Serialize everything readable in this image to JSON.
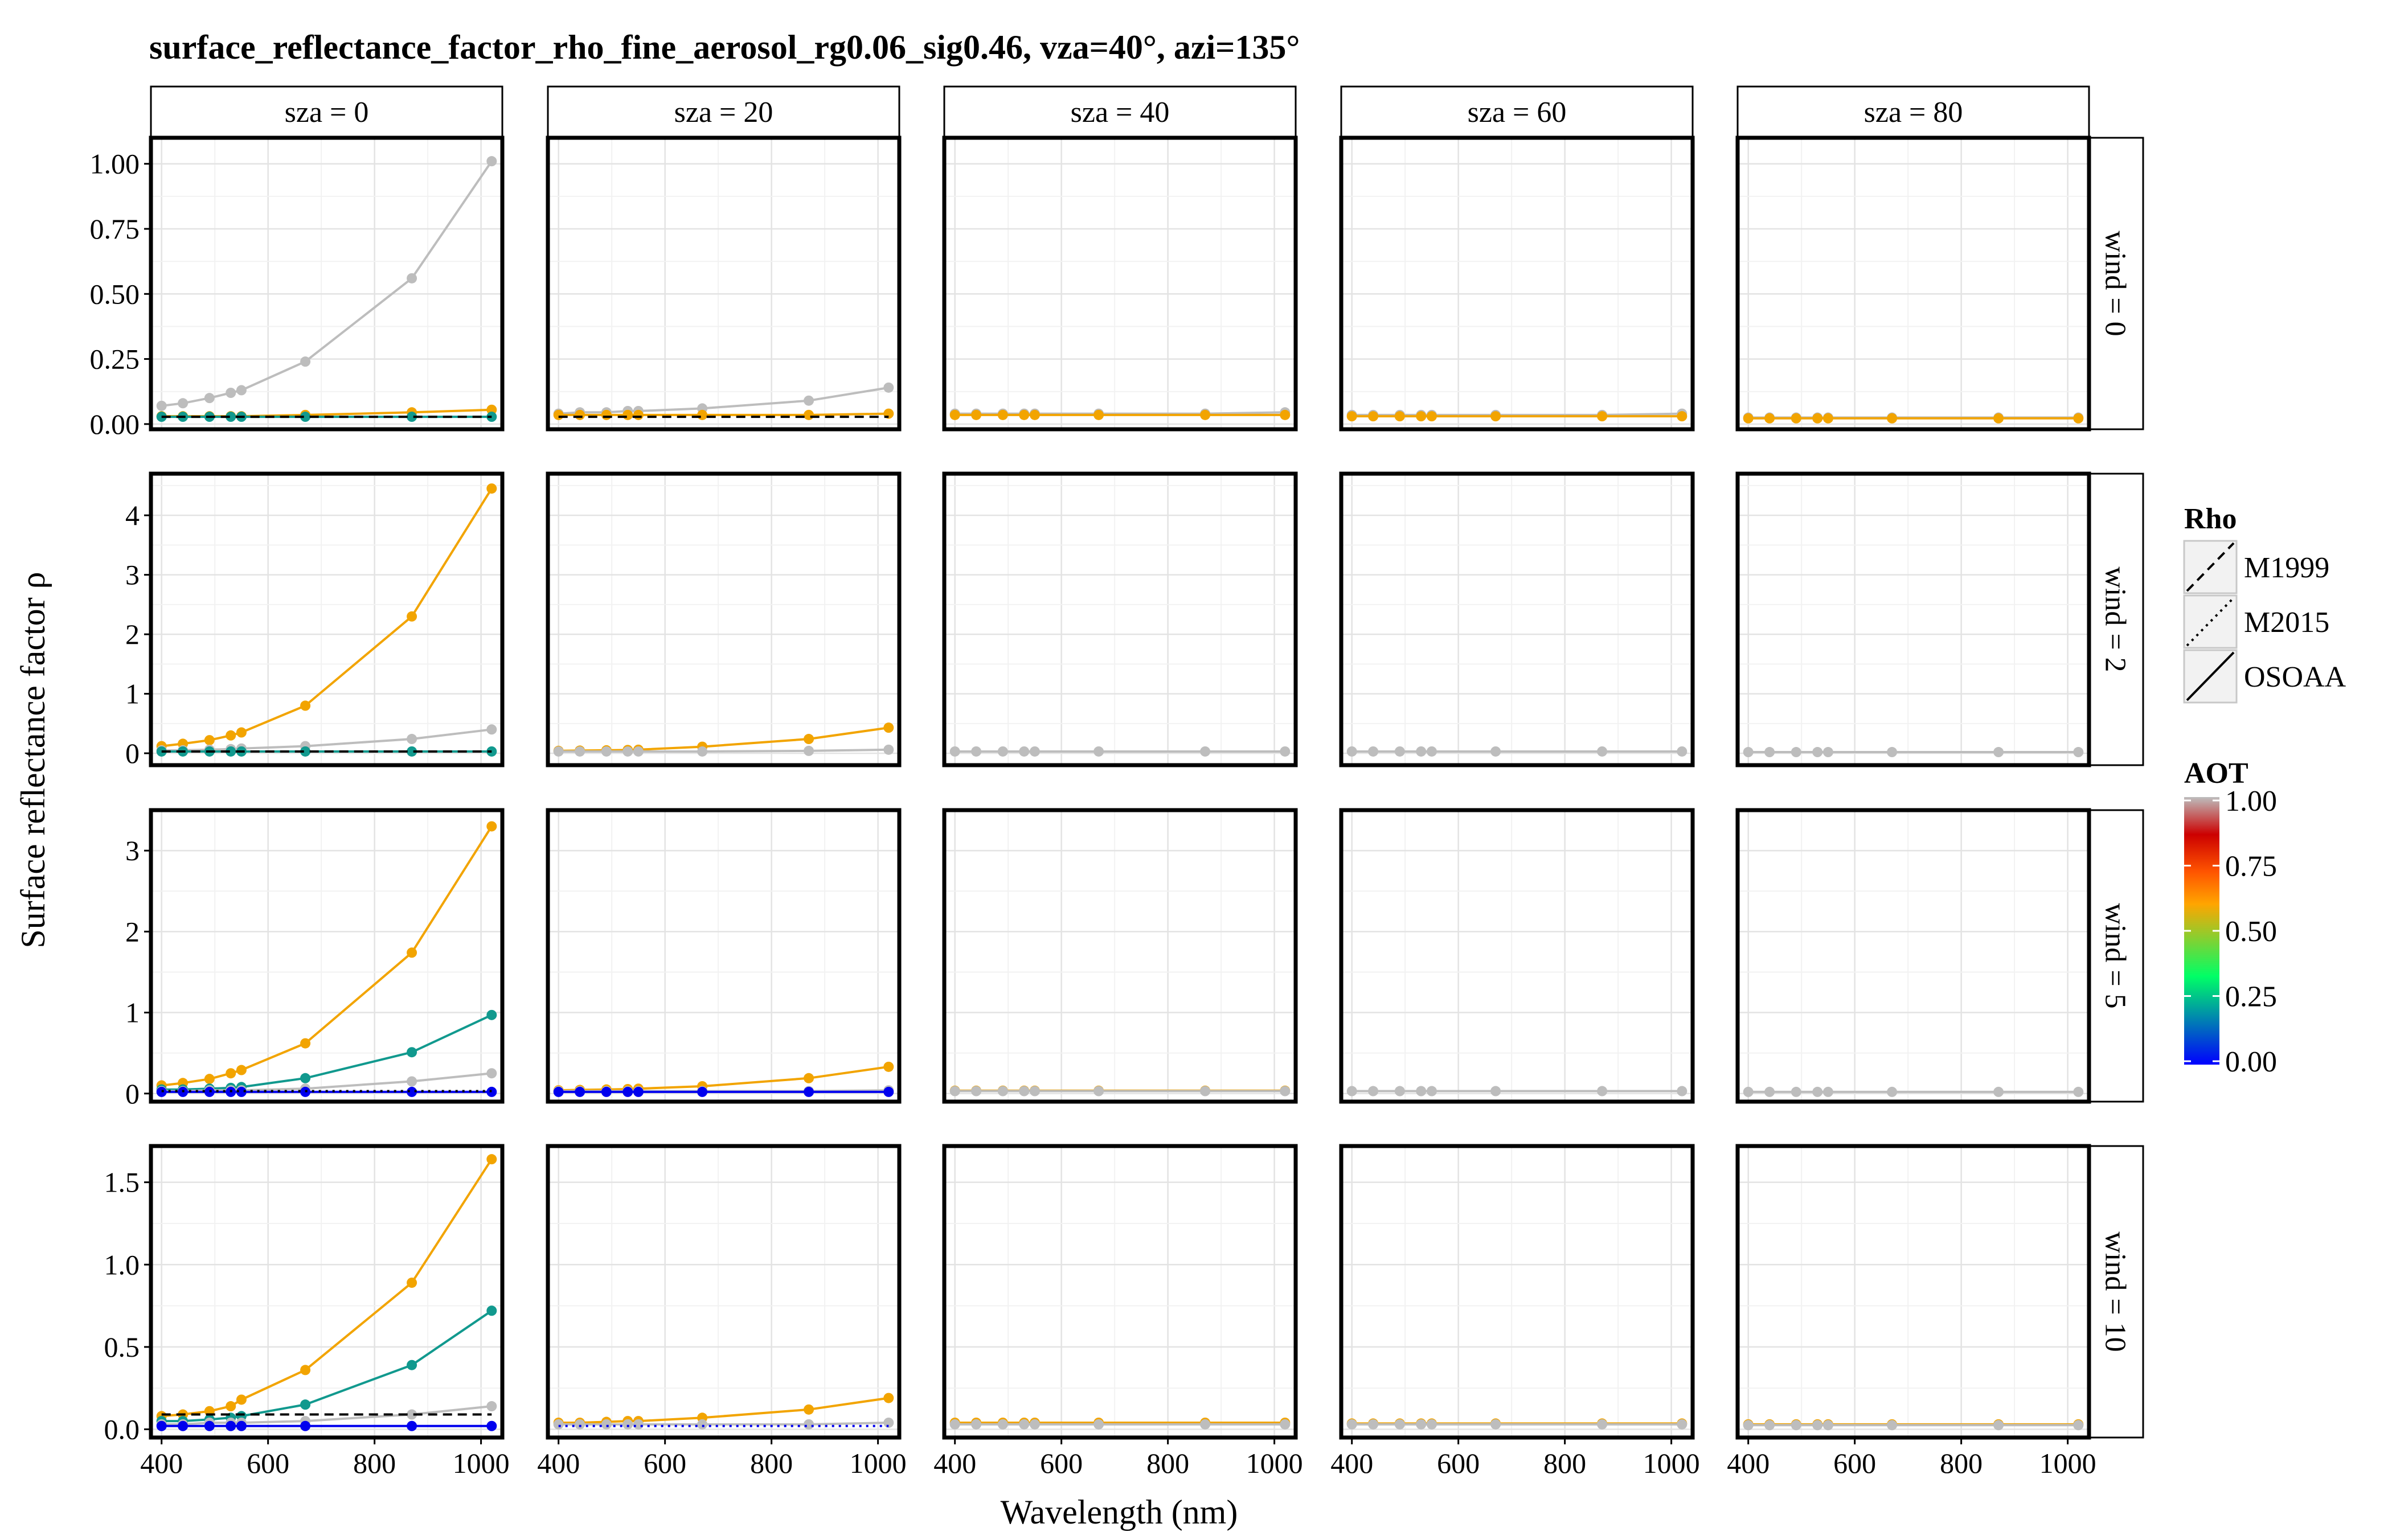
{
  "chart_data": {
    "type": "line",
    "title": "surface_reflectance_factor_rho_fine_aerosol_rg0.06_sig0.46, vza=40°, azi=135°",
    "xlabel": "Wavelength (nm)",
    "ylabel": "Surface reflectance factor ρ",
    "grid": true,
    "xlim": [
      380,
      1040
    ],
    "x_ticks": [
      400,
      600,
      800,
      1000
    ],
    "x": [
      400,
      440,
      490,
      530,
      550,
      670,
      870,
      1020
    ],
    "columns": [
      "sza = 0",
      "sza = 20",
      "sza = 40",
      "sza = 60",
      "sza = 80"
    ],
    "rows": [
      {
        "label": "wind = 0",
        "ylim": [
          -0.02,
          1.1
        ],
        "y_ticks": [
          0.0,
          0.25,
          0.5,
          0.75,
          1.0
        ],
        "y_tick_labels": [
          "0.00",
          "0.25",
          "0.50",
          "0.75",
          "1.00"
        ]
      },
      {
        "label": "wind = 2",
        "ylim": [
          -0.2,
          4.7
        ],
        "y_ticks": [
          0,
          1,
          2,
          3,
          4
        ],
        "y_tick_labels": [
          "0",
          "1",
          "2",
          "3",
          "4"
        ]
      },
      {
        "label": "wind = 5",
        "ylim": [
          -0.1,
          3.5
        ],
        "y_ticks": [
          0,
          1,
          2,
          3
        ],
        "y_tick_labels": [
          "0",
          "1",
          "2",
          "3"
        ]
      },
      {
        "label": "wind = 10",
        "ylim": [
          -0.05,
          1.72
        ],
        "y_ticks": [
          0.0,
          0.5,
          1.0,
          1.5
        ],
        "y_tick_labels": [
          "0.0",
          "0.5",
          "1.0",
          "1.5"
        ]
      }
    ],
    "legend_rho": {
      "title": "Rho",
      "position": "right",
      "entries": [
        {
          "label": "M1999",
          "linetype": "dashed"
        },
        {
          "label": "M2015",
          "linetype": "dotted"
        },
        {
          "label": "OSOAA",
          "linetype": "solid"
        }
      ]
    },
    "legend_aot": {
      "title": "AOT",
      "position": "right",
      "ticks": [
        0.0,
        0.25,
        0.5,
        0.75,
        1.0
      ],
      "tick_labels": [
        "0.00",
        "0.25",
        "0.50",
        "0.75",
        "1.00"
      ],
      "gradient": [
        "#0000ff",
        "#00ff66",
        "#ffa500",
        "#ff5500",
        "#cc0000",
        "#bdbdbd"
      ]
    },
    "panels": [
      {
        "row": 0,
        "col": 0,
        "series": [
          {
            "aot": 1.0,
            "color": "#bdbdbd",
            "linetype": "solid",
            "values": [
              0.07,
              0.08,
              0.1,
              0.12,
              0.13,
              0.24,
              0.56,
              1.01
            ]
          },
          {
            "aot": 0.5,
            "color": "#f2a400",
            "linetype": "solid",
            "values": [
              0.03,
              0.03,
              0.03,
              0.03,
              0.03,
              0.035,
              0.045,
              0.055
            ]
          },
          {
            "aot": 0.2,
            "color": "#11998e",
            "linetype": "solid",
            "values": [
              0.028,
              0.028,
              0.028,
              0.028,
              0.028,
              0.028,
              0.028,
              0.028
            ]
          },
          {
            "aot": 0.0,
            "color": "#000000",
            "linetype": "dashed",
            "values": [
              0.028,
              0.028,
              0.028,
              0.028,
              0.028,
              0.028,
              0.028,
              0.028
            ]
          }
        ]
      },
      {
        "row": 0,
        "col": 1,
        "series": [
          {
            "aot": 1.0,
            "color": "#bdbdbd",
            "linetype": "solid",
            "values": [
              0.04,
              0.045,
              0.045,
              0.05,
              0.05,
              0.06,
              0.09,
              0.14
            ]
          },
          {
            "aot": 0.5,
            "color": "#f2a400",
            "linetype": "solid",
            "values": [
              0.035,
              0.035,
              0.035,
              0.035,
              0.035,
              0.035,
              0.035,
              0.04
            ]
          },
          {
            "aot": 0.0,
            "color": "#000000",
            "linetype": "dashed",
            "values": [
              0.028,
              0.028,
              0.028,
              0.028,
              0.028,
              0.028,
              0.028,
              0.028
            ]
          }
        ]
      },
      {
        "row": 0,
        "col": 2,
        "series": [
          {
            "aot": 1.0,
            "color": "#bdbdbd",
            "linetype": "solid",
            "values": [
              0.04,
              0.04,
              0.04,
              0.04,
              0.04,
              0.04,
              0.04,
              0.045
            ]
          },
          {
            "aot": 0.5,
            "color": "#f2a400",
            "linetype": "solid",
            "values": [
              0.035,
              0.035,
              0.035,
              0.035,
              0.035,
              0.035,
              0.035,
              0.035
            ]
          }
        ]
      },
      {
        "row": 0,
        "col": 3,
        "series": [
          {
            "aot": 1.0,
            "color": "#bdbdbd",
            "linetype": "solid",
            "values": [
              0.035,
              0.035,
              0.035,
              0.035,
              0.035,
              0.035,
              0.035,
              0.04
            ]
          },
          {
            "aot": 0.5,
            "color": "#f2a400",
            "linetype": "solid",
            "values": [
              0.03,
              0.03,
              0.03,
              0.03,
              0.03,
              0.03,
              0.03,
              0.03
            ]
          }
        ]
      },
      {
        "row": 0,
        "col": 4,
        "series": [
          {
            "aot": 1.0,
            "color": "#bdbdbd",
            "linetype": "solid",
            "values": [
              0.025,
              0.025,
              0.025,
              0.025,
              0.025,
              0.025,
              0.025,
              0.025
            ]
          },
          {
            "aot": 0.5,
            "color": "#f2a400",
            "linetype": "solid",
            "values": [
              0.022,
              0.022,
              0.022,
              0.022,
              0.022,
              0.022,
              0.022,
              0.022
            ]
          }
        ]
      },
      {
        "row": 1,
        "col": 0,
        "series": [
          {
            "aot": 0.5,
            "color": "#f2a400",
            "linetype": "solid",
            "values": [
              0.12,
              0.16,
              0.22,
              0.3,
              0.35,
              0.8,
              2.3,
              4.45
            ]
          },
          {
            "aot": 1.0,
            "color": "#bdbdbd",
            "linetype": "solid",
            "values": [
              0.05,
              0.05,
              0.06,
              0.07,
              0.08,
              0.12,
              0.24,
              0.4
            ]
          },
          {
            "aot": 0.2,
            "color": "#11998e",
            "linetype": "solid",
            "values": [
              0.03,
              0.03,
              0.03,
              0.03,
              0.03,
              0.03,
              0.03,
              0.03
            ]
          },
          {
            "aot": 0.0,
            "color": "#000000",
            "linetype": "dashed",
            "values": [
              0.03,
              0.03,
              0.03,
              0.03,
              0.03,
              0.03,
              0.03,
              0.03
            ]
          }
        ]
      },
      {
        "row": 1,
        "col": 1,
        "series": [
          {
            "aot": 0.5,
            "color": "#f2a400",
            "linetype": "solid",
            "values": [
              0.04,
              0.045,
              0.05,
              0.055,
              0.06,
              0.11,
              0.24,
              0.43
            ]
          },
          {
            "aot": 1.0,
            "color": "#bdbdbd",
            "linetype": "solid",
            "values": [
              0.03,
              0.03,
              0.03,
              0.03,
              0.03,
              0.03,
              0.04,
              0.06
            ]
          }
        ]
      },
      {
        "row": 1,
        "col": 2,
        "series": [
          {
            "aot": 1.0,
            "color": "#bdbdbd",
            "linetype": "solid",
            "values": [
              0.03,
              0.03,
              0.03,
              0.03,
              0.03,
              0.03,
              0.03,
              0.03
            ]
          }
        ]
      },
      {
        "row": 1,
        "col": 3,
        "series": [
          {
            "aot": 1.0,
            "color": "#bdbdbd",
            "linetype": "solid",
            "values": [
              0.03,
              0.03,
              0.03,
              0.03,
              0.03,
              0.03,
              0.03,
              0.03
            ]
          }
        ]
      },
      {
        "row": 1,
        "col": 4,
        "series": [
          {
            "aot": 1.0,
            "color": "#bdbdbd",
            "linetype": "solid",
            "values": [
              0.02,
              0.02,
              0.02,
              0.02,
              0.02,
              0.02,
              0.02,
              0.02
            ]
          }
        ]
      },
      {
        "row": 2,
        "col": 0,
        "series": [
          {
            "aot": 0.5,
            "color": "#f2a400",
            "linetype": "solid",
            "values": [
              0.1,
              0.13,
              0.18,
              0.25,
              0.29,
              0.62,
              1.74,
              3.3
            ]
          },
          {
            "aot": 0.2,
            "color": "#11998e",
            "linetype": "solid",
            "values": [
              0.05,
              0.05,
              0.06,
              0.07,
              0.08,
              0.19,
              0.51,
              0.97
            ]
          },
          {
            "aot": 1.0,
            "color": "#bdbdbd",
            "linetype": "solid",
            "values": [
              0.03,
              0.03,
              0.04,
              0.04,
              0.04,
              0.06,
              0.15,
              0.25
            ]
          },
          {
            "aot": 0.0,
            "color": "#0000ee",
            "linetype": "solid",
            "values": [
              0.02,
              0.02,
              0.02,
              0.02,
              0.02,
              0.02,
              0.02,
              0.02
            ]
          },
          {
            "aot": 0.0,
            "color": "#000000",
            "linetype": "dotted",
            "values": [
              0.03,
              0.03,
              0.03,
              0.03,
              0.03,
              0.03,
              0.03,
              0.03
            ]
          }
        ]
      },
      {
        "row": 2,
        "col": 1,
        "series": [
          {
            "aot": 0.5,
            "color": "#f2a400",
            "linetype": "solid",
            "values": [
              0.04,
              0.045,
              0.05,
              0.055,
              0.06,
              0.09,
              0.19,
              0.33
            ]
          },
          {
            "aot": 1.0,
            "color": "#bdbdbd",
            "linetype": "solid",
            "values": [
              0.03,
              0.03,
              0.03,
              0.03,
              0.03,
              0.03,
              0.03,
              0.04
            ]
          },
          {
            "aot": 0.0,
            "color": "#0000ee",
            "linetype": "solid",
            "values": [
              0.02,
              0.02,
              0.02,
              0.02,
              0.02,
              0.02,
              0.02,
              0.02
            ]
          }
        ]
      },
      {
        "row": 2,
        "col": 2,
        "series": [
          {
            "aot": 0.5,
            "color": "#f2a400",
            "linetype": "solid",
            "values": [
              0.035,
              0.035,
              0.035,
              0.035,
              0.035,
              0.035,
              0.035,
              0.035
            ]
          },
          {
            "aot": 1.0,
            "color": "#bdbdbd",
            "linetype": "solid",
            "values": [
              0.03,
              0.03,
              0.03,
              0.03,
              0.03,
              0.03,
              0.03,
              0.03
            ]
          }
        ]
      },
      {
        "row": 2,
        "col": 3,
        "series": [
          {
            "aot": 1.0,
            "color": "#bdbdbd",
            "linetype": "solid",
            "values": [
              0.03,
              0.03,
              0.03,
              0.03,
              0.03,
              0.03,
              0.03,
              0.03
            ]
          }
        ]
      },
      {
        "row": 2,
        "col": 4,
        "series": [
          {
            "aot": 1.0,
            "color": "#bdbdbd",
            "linetype": "solid",
            "values": [
              0.02,
              0.02,
              0.02,
              0.02,
              0.02,
              0.02,
              0.02,
              0.02
            ]
          }
        ]
      },
      {
        "row": 3,
        "col": 0,
        "series": [
          {
            "aot": 0.5,
            "color": "#f2a400",
            "linetype": "solid",
            "values": [
              0.08,
              0.09,
              0.11,
              0.14,
              0.18,
              0.36,
              0.89,
              1.64
            ]
          },
          {
            "aot": 0.2,
            "color": "#11998e",
            "linetype": "solid",
            "values": [
              0.05,
              0.05,
              0.06,
              0.07,
              0.08,
              0.15,
              0.39,
              0.72
            ]
          },
          {
            "aot": 1.0,
            "color": "#bdbdbd",
            "linetype": "solid",
            "values": [
              0.03,
              0.03,
              0.04,
              0.04,
              0.04,
              0.05,
              0.09,
              0.14
            ]
          },
          {
            "aot": 0.0,
            "color": "#0000ee",
            "linetype": "solid",
            "values": [
              0.02,
              0.02,
              0.02,
              0.02,
              0.02,
              0.02,
              0.02,
              0.02
            ]
          },
          {
            "aot": 0.0,
            "color": "#000000",
            "linetype": "dashed",
            "values": [
              0.09,
              0.09,
              0.09,
              0.09,
              0.09,
              0.09,
              0.09,
              0.09
            ]
          }
        ]
      },
      {
        "row": 3,
        "col": 1,
        "series": [
          {
            "aot": 0.5,
            "color": "#f2a400",
            "linetype": "solid",
            "values": [
              0.04,
              0.04,
              0.045,
              0.05,
              0.05,
              0.07,
              0.12,
              0.19
            ]
          },
          {
            "aot": 1.0,
            "color": "#bdbdbd",
            "linetype": "solid",
            "values": [
              0.03,
              0.03,
              0.03,
              0.03,
              0.03,
              0.03,
              0.03,
              0.04
            ]
          },
          {
            "aot": 0.0,
            "color": "#0000ee",
            "linetype": "dotted",
            "values": [
              0.02,
              0.02,
              0.02,
              0.02,
              0.02,
              0.02,
              0.02,
              0.02
            ]
          }
        ]
      },
      {
        "row": 3,
        "col": 2,
        "series": [
          {
            "aot": 0.5,
            "color": "#f2a400",
            "linetype": "solid",
            "values": [
              0.04,
              0.04,
              0.04,
              0.04,
              0.04,
              0.04,
              0.04,
              0.04
            ]
          },
          {
            "aot": 1.0,
            "color": "#bdbdbd",
            "linetype": "solid",
            "values": [
              0.03,
              0.03,
              0.03,
              0.03,
              0.03,
              0.03,
              0.03,
              0.03
            ]
          }
        ]
      },
      {
        "row": 3,
        "col": 3,
        "series": [
          {
            "aot": 0.5,
            "color": "#f2a400",
            "linetype": "solid",
            "values": [
              0.035,
              0.035,
              0.035,
              0.035,
              0.035,
              0.035,
              0.035,
              0.035
            ]
          },
          {
            "aot": 1.0,
            "color": "#bdbdbd",
            "linetype": "solid",
            "values": [
              0.03,
              0.03,
              0.03,
              0.03,
              0.03,
              0.03,
              0.03,
              0.03
            ]
          }
        ]
      },
      {
        "row": 3,
        "col": 4,
        "series": [
          {
            "aot": 0.5,
            "color": "#f2a400",
            "linetype": "solid",
            "values": [
              0.03,
              0.03,
              0.03,
              0.03,
              0.03,
              0.03,
              0.03,
              0.03
            ]
          },
          {
            "aot": 1.0,
            "color": "#bdbdbd",
            "linetype": "solid",
            "values": [
              0.025,
              0.025,
              0.025,
              0.025,
              0.025,
              0.025,
              0.025,
              0.025
            ]
          }
        ]
      }
    ]
  }
}
